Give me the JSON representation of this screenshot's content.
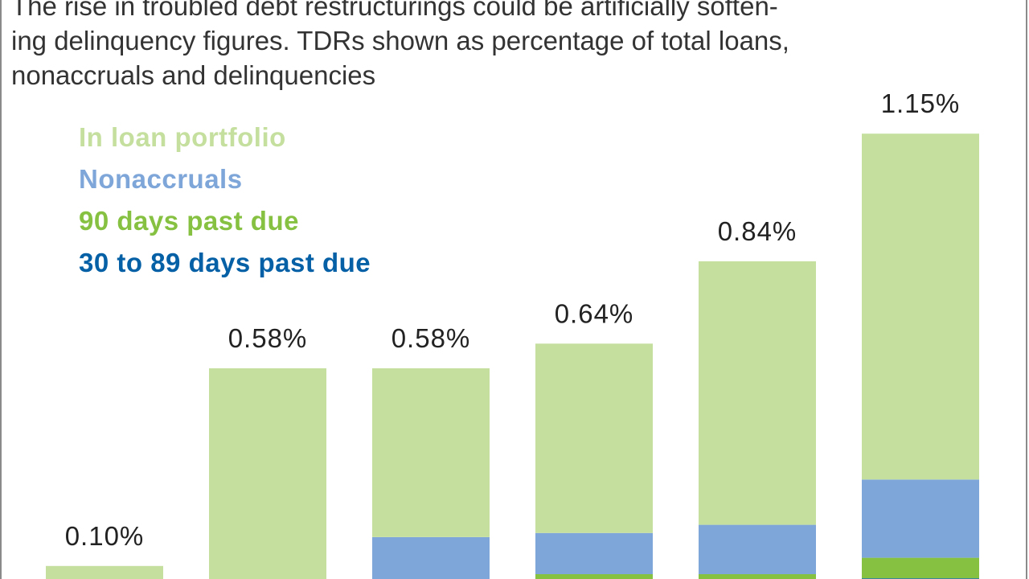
{
  "subtitle_lines": [
    "The rise in troubled debt restructurings could be artificially soften-",
    "ing delinquency figures. TDRs shown as percentage of total loans,",
    "nonaccruals and delinquencies"
  ],
  "colors": {
    "in_loan_portfolio": "#c5df9f",
    "nonaccruals": "#7ea6d8",
    "past_due_90": "#86c142",
    "past_due_30_89": "#0560a6"
  },
  "chart_data": {
    "type": "bar",
    "stacked": true,
    "subtitle": "The rise in troubled debt restructurings could be artificially softening delinquency figures. TDRs shown as percentage of total loans, nonaccruals and delinquencies",
    "legend_placement": "top-left",
    "ylim": [
      0,
      1.25
    ],
    "categories": [
      "",
      "",
      "",
      "",
      "",
      ""
    ],
    "totals": [
      0.1,
      0.58,
      0.58,
      0.64,
      0.84,
      1.15
    ],
    "total_labels": [
      "0.10%",
      "0.58%",
      "0.58%",
      "0.64%",
      "0.84%",
      "1.15%"
    ],
    "series": [
      {
        "name": "30 to 89 days past due",
        "color_key": "past_due_30_89",
        "values": [
          0.0,
          0.0,
          0.03,
          0.04,
          0.04,
          0.07
        ]
      },
      {
        "name": "90 days past due",
        "color_key": "past_due_90",
        "values": [
          0.0,
          0.0,
          0.01,
          0.04,
          0.04,
          0.05
        ]
      },
      {
        "name": "Nonaccruals",
        "color_key": "nonaccruals",
        "values": [
          0.0,
          0.01,
          0.13,
          0.1,
          0.12,
          0.19
        ]
      },
      {
        "name": "In loan portfolio",
        "color_key": "in_loan_portfolio",
        "values": [
          0.1,
          0.57,
          0.41,
          0.46,
          0.64,
          0.84
        ]
      }
    ],
    "grid": false
  }
}
